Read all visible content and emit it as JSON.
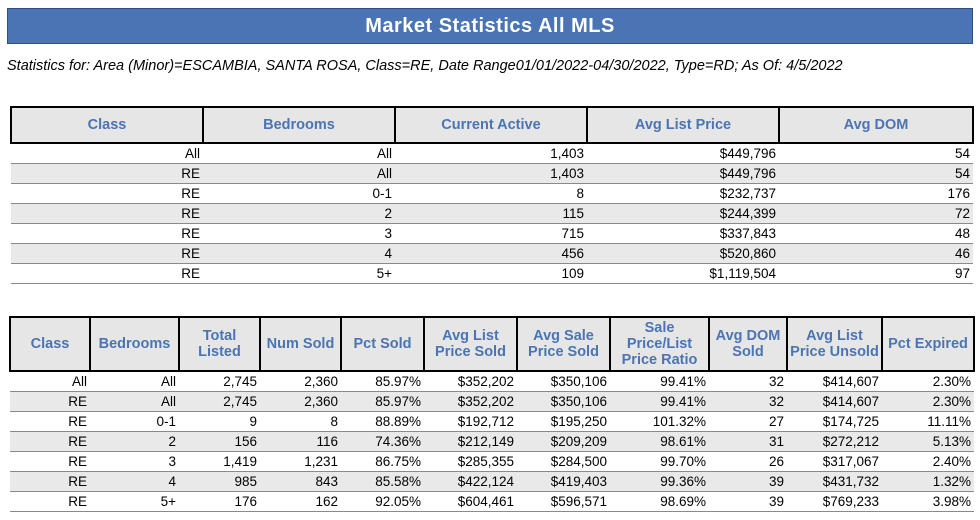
{
  "header": {
    "title": "Market Statistics All MLS",
    "subtitle": "Statistics for: Area (Minor)=ESCAMBIA, SANTA ROSA, Class=RE, Date Range01/01/2022-04/30/2022, Type=RD; As Of: 4/5/2022"
  },
  "active_table": {
    "columns": [
      "Class",
      "Bedrooms",
      "Current Active",
      "Avg List Price",
      "Avg DOM"
    ],
    "rows": [
      [
        "All",
        "All",
        "1,403",
        "$449,796",
        "54"
      ],
      [
        "RE",
        "All",
        "1,403",
        "$449,796",
        "54"
      ],
      [
        "RE",
        "0-1",
        "8",
        "$232,737",
        "176"
      ],
      [
        "RE",
        "2",
        "115",
        "$244,399",
        "72"
      ],
      [
        "RE",
        "3",
        "715",
        "$337,843",
        "48"
      ],
      [
        "RE",
        "4",
        "456",
        "$520,860",
        "46"
      ],
      [
        "RE",
        "5+",
        "109",
        "$1,119,504",
        "97"
      ]
    ]
  },
  "sold_table": {
    "columns": [
      "Class",
      "Bedrooms",
      "Total Listed",
      "Num Sold",
      "Pct Sold",
      "Avg List Price Sold",
      "Avg Sale Price Sold",
      "Sale Price/List Price Ratio",
      "Avg DOM Sold",
      "Avg List Price Unsold",
      "Pct Expired"
    ],
    "rows": [
      [
        "All",
        "All",
        "2,745",
        "2,360",
        "85.97%",
        "$352,202",
        "$350,106",
        "99.41%",
        "32",
        "$414,607",
        "2.30%"
      ],
      [
        "RE",
        "All",
        "2,745",
        "2,360",
        "85.97%",
        "$352,202",
        "$350,106",
        "99.41%",
        "32",
        "$414,607",
        "2.30%"
      ],
      [
        "RE",
        "0-1",
        "9",
        "8",
        "88.89%",
        "$192,712",
        "$195,250",
        "101.32%",
        "27",
        "$174,725",
        "11.11%"
      ],
      [
        "RE",
        "2",
        "156",
        "116",
        "74.36%",
        "$212,149",
        "$209,209",
        "98.61%",
        "31",
        "$272,212",
        "5.13%"
      ],
      [
        "RE",
        "3",
        "1,419",
        "1,231",
        "86.75%",
        "$285,355",
        "$284,500",
        "99.70%",
        "26",
        "$317,067",
        "2.40%"
      ],
      [
        "RE",
        "4",
        "985",
        "843",
        "85.58%",
        "$422,124",
        "$419,403",
        "99.36%",
        "39",
        "$431,732",
        "1.32%"
      ],
      [
        "RE",
        "5+",
        "176",
        "162",
        "92.05%",
        "$604,461",
        "$596,571",
        "98.69%",
        "39",
        "$769,233",
        "3.98%"
      ]
    ]
  }
}
